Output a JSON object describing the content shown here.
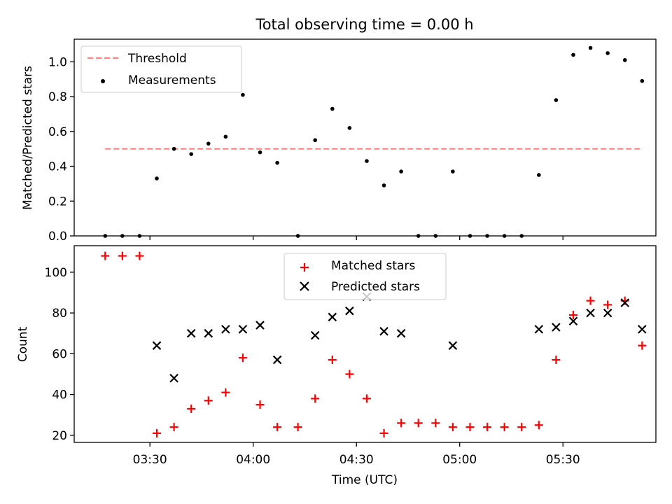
{
  "chart_data": [
    {
      "type": "scatter",
      "title": "Total observing time = 0.00 h",
      "ylabel": "Matched/Predicted stars",
      "xlabel": "",
      "ylim": [
        0,
        1.13
      ],
      "yticks": [
        "0.0",
        "0.2",
        "0.4",
        "0.6",
        "0.8",
        "1.0"
      ],
      "ytick_values": [
        0,
        0.2,
        0.4,
        0.6,
        0.8,
        1.0
      ],
      "threshold": {
        "name": "Threshold",
        "value": 0.5,
        "x_start": "03:17",
        "x_end": "05:53",
        "color": "#ff8080"
      },
      "legend_position": "upper-left",
      "series": [
        {
          "name": "Measurements",
          "color": "#000000",
          "x": [
            "03:17",
            "03:22",
            "03:27",
            "03:32",
            "03:37",
            "03:42",
            "03:47",
            "03:52",
            "03:57",
            "04:02",
            "04:07",
            "04:13",
            "04:18",
            "04:23",
            "04:28",
            "04:33",
            "04:38",
            "04:43",
            "04:48",
            "04:53",
            "04:58",
            "05:03",
            "05:08",
            "05:13",
            "05:18",
            "05:23",
            "05:28",
            "05:33",
            "05:38",
            "05:43",
            "05:48",
            "05:53"
          ],
          "y": [
            0,
            0,
            0,
            0.33,
            0.5,
            0.47,
            0.53,
            0.57,
            0.81,
            0.48,
            0.42,
            0,
            0.55,
            0.73,
            0.62,
            0.43,
            0.29,
            0.37,
            0,
            0,
            0.37,
            0,
            0,
            0,
            0,
            0.35,
            0.78,
            1.04,
            1.08,
            1.05,
            1.01,
            0.89
          ]
        }
      ]
    },
    {
      "type": "scatter",
      "ylabel": "Count",
      "xlabel": "Time (UTC)",
      "xlim": [
        "03:08",
        "05:57"
      ],
      "xticks": [
        "03:30",
        "04:00",
        "04:30",
        "05:00",
        "05:30"
      ],
      "ylim": [
        16.5,
        113
      ],
      "yticks": [
        "20",
        "40",
        "60",
        "80",
        "100"
      ],
      "ytick_values": [
        20,
        40,
        60,
        80,
        100
      ],
      "legend_position": "upper-center",
      "series": [
        {
          "name": "Matched stars",
          "marker": "plus",
          "color": "#ff0000",
          "x": [
            "03:17",
            "03:22",
            "03:27",
            "03:32",
            "03:37",
            "03:42",
            "03:47",
            "03:52",
            "03:57",
            "04:02",
            "04:07",
            "04:13",
            "04:18",
            "04:23",
            "04:28",
            "04:33",
            "04:38",
            "04:43",
            "04:48",
            "04:53",
            "04:58",
            "05:03",
            "05:08",
            "05:13",
            "05:18",
            "05:23",
            "05:28",
            "05:33",
            "05:38",
            "05:43",
            "05:48",
            "05:53"
          ],
          "y": [
            108,
            108,
            108,
            21,
            24,
            33,
            37,
            41,
            58,
            35,
            24,
            24,
            38,
            57,
            50,
            38,
            21,
            26,
            26,
            26,
            24,
            24,
            24,
            24,
            24,
            25,
            57,
            79,
            86,
            84,
            86,
            64
          ]
        },
        {
          "name": "Predicted stars",
          "marker": "x",
          "color": "#000000",
          "x": [
            "03:32",
            "03:37",
            "03:42",
            "03:47",
            "03:52",
            "03:57",
            "04:02",
            "04:07",
            "04:18",
            "04:23",
            "04:28",
            "04:33",
            "04:38",
            "04:43",
            "04:58",
            "05:23",
            "05:28",
            "05:33",
            "05:38",
            "05:43",
            "05:48",
            "05:53"
          ],
          "y": [
            64,
            48,
            70,
            70,
            72,
            72,
            74,
            57,
            69,
            78,
            81,
            88,
            71,
            70,
            64,
            72,
            73,
            76,
            80,
            80,
            85,
            72
          ]
        }
      ]
    }
  ]
}
